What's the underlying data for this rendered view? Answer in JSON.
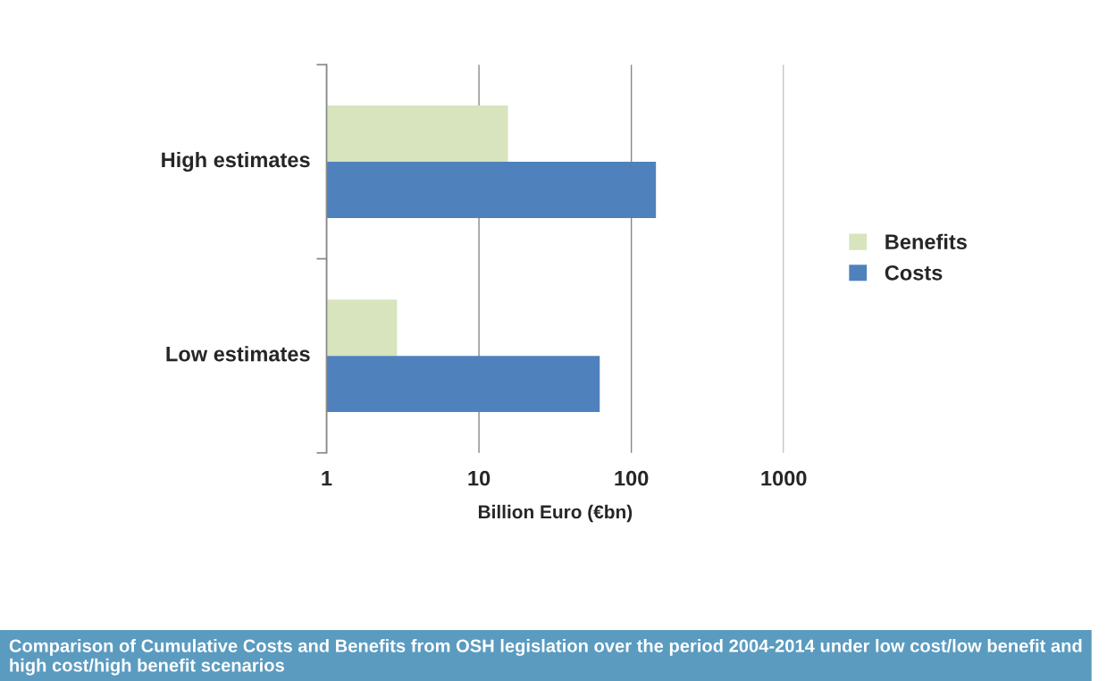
{
  "chart_data": {
    "type": "bar",
    "orientation": "horizontal",
    "categories": [
      "High estimates",
      "Low estimates"
    ],
    "series": [
      {
        "name": "Benefits",
        "color": "#d7e4bd",
        "values": [
          15.5,
          2.9
        ]
      },
      {
        "name": "Costs",
        "color": "#4f81bd",
        "values": [
          145,
          62
        ]
      }
    ],
    "log": "x",
    "xlim": [
      1,
      1000
    ],
    "xticks": [
      1,
      10,
      100,
      1000
    ],
    "xlabel": "Billion Euro (€bn)",
    "grid": "x",
    "legend": "right",
    "annotations": [
      "Comparison of Cumulative Costs and Benefits from OSH legislation over the period 2004-2014 under low cost/low benefit and high cost/high benefit scenarios"
    ]
  }
}
